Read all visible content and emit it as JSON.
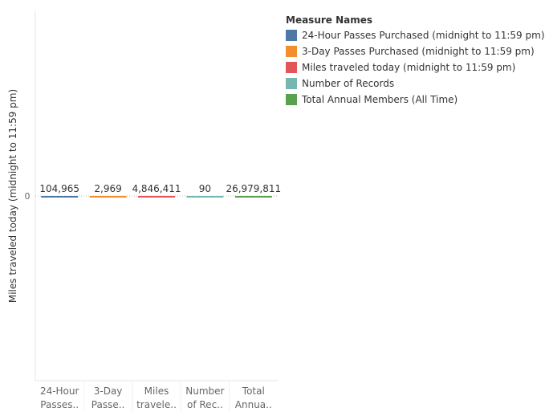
{
  "chart_data": {
    "type": "bar",
    "ylabel": "Miles traveled today (midnight to 11:59 pm)",
    "ytick_labels": [
      "0"
    ],
    "categories_display": [
      [
        "24-Hour",
        "Passes.."
      ],
      [
        "3-Day",
        "Passe.."
      ],
      [
        "Miles",
        "travele.."
      ],
      [
        "Number",
        "of Rec.."
      ],
      [
        "Total",
        "Annua.."
      ]
    ],
    "values": [
      104965,
      2969,
      4846411,
      90,
      26979811
    ],
    "value_labels": [
      "104,965",
      "2,969",
      "4,846,411",
      "90",
      "26,979,811"
    ],
    "colors": [
      "#4e79a7",
      "#f28e2b",
      "#e15759",
      "#76b7b2",
      "#59a14f"
    ],
    "legend": {
      "title": "Measure Names",
      "position": "top-right",
      "items": [
        {
          "label": "24-Hour Passes Purchased (midnight to 11:59 pm)",
          "color": "#4e79a7"
        },
        {
          "label": "3-Day Passes Purchased (midnight to 11:59 pm)",
          "color": "#f28e2b"
        },
        {
          "label": "Miles traveled today (midnight to 11:59 pm)",
          "color": "#e15759"
        },
        {
          "label": "Number of Records",
          "color": "#76b7b2"
        },
        {
          "label": "Total Annual Members (All Time)",
          "color": "#59a14f"
        }
      ]
    }
  }
}
